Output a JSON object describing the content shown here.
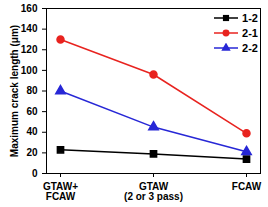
{
  "chart_data": {
    "type": "line",
    "categories": [
      "GTAW+\nFCAW",
      "GTAW\n(2 or 3 pass)",
      "FCAW"
    ],
    "ylabel": "Maximum crack length (μm)",
    "ylim": [
      0,
      160
    ],
    "yticks": [
      0,
      20,
      40,
      60,
      80,
      100,
      120,
      140,
      160
    ],
    "grid": false,
    "legend": "upper right",
    "series": [
      {
        "name": "1-2",
        "color": "#000000",
        "marker": "square",
        "values": [
          23,
          19,
          14
        ]
      },
      {
        "name": "2-1",
        "color": "#e8231f",
        "marker": "circle",
        "values": [
          130,
          96,
          39
        ]
      },
      {
        "name": "2-2",
        "color": "#2727d6",
        "marker": "triangle",
        "values": [
          80,
          45,
          21
        ]
      }
    ]
  }
}
